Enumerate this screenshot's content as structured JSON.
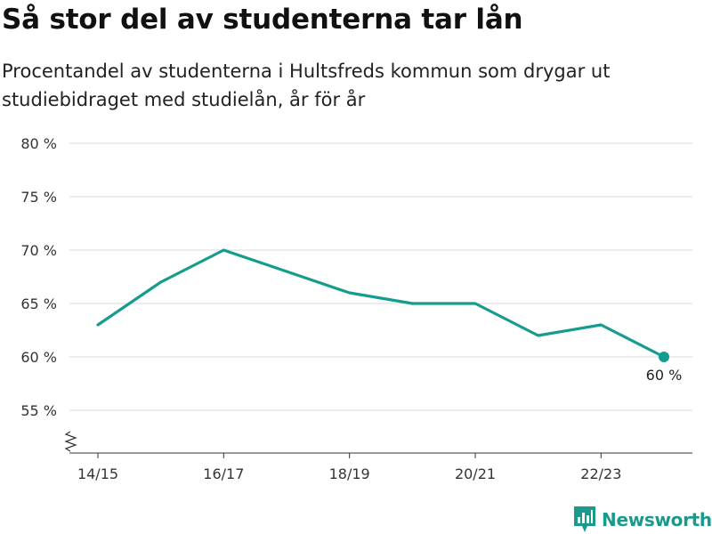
{
  "title": "Så stor del av studenterna tar lån",
  "subtitle": "Procentandel av studenterna i Hultsfreds kommun som drygar ut studiebidraget med studielån, år för år",
  "brand": "Newsworthy",
  "colors": {
    "line": "#169c8e",
    "grid": "#d9d9d9",
    "axis": "#333333"
  },
  "chart_data": {
    "type": "line",
    "title": "",
    "xlabel": "",
    "ylabel": "",
    "x": [
      "14/15",
      "15/16",
      "16/17",
      "17/18",
      "18/19",
      "19/20",
      "20/21",
      "21/22",
      "22/23",
      "23/24"
    ],
    "x_tick_labels": [
      "14/15",
      "16/17",
      "18/19",
      "20/21",
      "22/23"
    ],
    "y_ticks": [
      55,
      60,
      65,
      70,
      75,
      80
    ],
    "y_tick_labels": [
      "55 %",
      "60 %",
      "65 %",
      "70 %",
      "75 %",
      "80 %"
    ],
    "ylim": [
      51,
      80
    ],
    "grid": true,
    "series": [
      {
        "values": [
          63,
          67,
          70,
          68,
          66,
          65,
          65,
          62,
          63,
          60
        ]
      }
    ],
    "end_label": "60 %"
  }
}
